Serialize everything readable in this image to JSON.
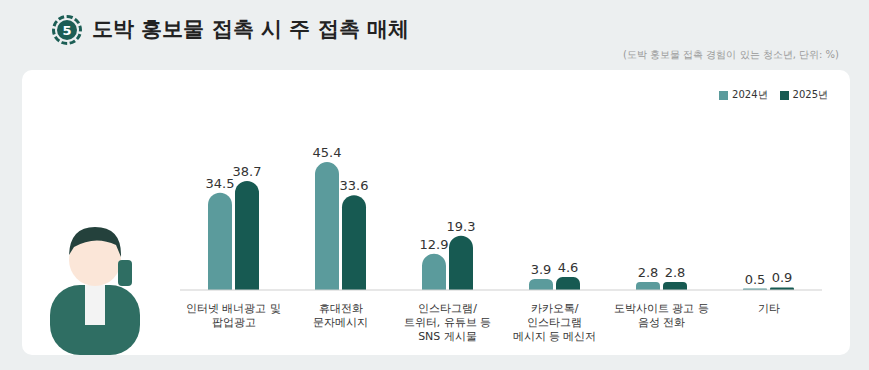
{
  "section_number": "5",
  "chart_data": {
    "type": "bar",
    "title": "도박 홍보물 접촉 시 주 접촉 매체",
    "subtitle": "(도박 홍보물 접촉 경험이 있는 청소년, 단위: %)",
    "categories": [
      "인터넷 배너광고 및\n팝업광고",
      "휴대전화\n문자메시지",
      "인스타그램/\n트위터, 유튜브 등\nSNS 게시물",
      "카카오톡/\n인스타그램\n메시지 등 메신저",
      "도박사이트 광고 등\n음성 전화",
      "기타"
    ],
    "series": [
      {
        "name": "2024년",
        "color": "#5b9b9c",
        "values": [
          34.5,
          45.4,
          12.9,
          3.9,
          2.8,
          0.5
        ]
      },
      {
        "name": "2025년",
        "color": "#175a52",
        "values": [
          38.7,
          33.6,
          19.3,
          4.6,
          2.8,
          0.9
        ]
      }
    ],
    "ylim": [
      0,
      60
    ],
    "grid": false,
    "legend": "top-right",
    "data_labels": true,
    "tick_labels": "x"
  }
}
